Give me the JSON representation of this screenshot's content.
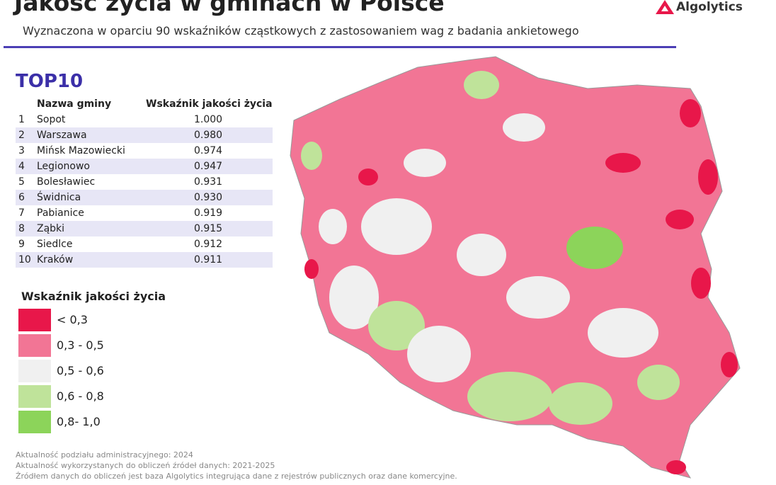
{
  "header": {
    "title": "Jakość życia w gminach w Polsce",
    "subtitle": "Wyznaczona w oparciu 90 wskaźników cząstkowych z zastosowaniem wag z badania ankietowego",
    "logo": "Algolytics"
  },
  "top10": {
    "heading": "TOP10",
    "columns": [
      "Nazwa gminy",
      "Wskaźnik jakości życia"
    ],
    "rows": [
      [
        1,
        "Sopot",
        "1.000"
      ],
      [
        2,
        "Warszawa",
        "0.980"
      ],
      [
        3,
        "Mińsk Mazowiecki",
        "0.974"
      ],
      [
        4,
        "Legionowo",
        "0.947"
      ],
      [
        5,
        "Bolesławiec",
        "0.931"
      ],
      [
        6,
        "Świdnica",
        "0.930"
      ],
      [
        7,
        "Pabianice",
        "0.919"
      ],
      [
        8,
        "Ząbki",
        "0.915"
      ],
      [
        9,
        "Siedlce",
        "0.912"
      ],
      [
        10,
        "Kraków",
        "0.911"
      ]
    ]
  },
  "legend": {
    "title": "Wskaźnik jakości życia",
    "items": [
      {
        "label": "< 0,3",
        "color": "#e8174a"
      },
      {
        "label": "0,3 - 0,5",
        "color": "#f27595"
      },
      {
        "label": "0,5 - 0,6",
        "color": "#f0f0f0"
      },
      {
        "label": "0,6 - 0,8",
        "color": "#bfe39a"
      },
      {
        "label": "0,8- 1,0",
        "color": "#8cd45a"
      }
    ]
  },
  "footnotes": [
    "Aktualność podziału administracyjnego: 2024",
    "Aktualność wykorzystanych do obliczeń źródeł danych: 2021-2025",
    "Źródłem danych do obliczeń jest baza Algolytics integrująca dane z rejestrów publicznych oraz dane komercyjne."
  ]
}
